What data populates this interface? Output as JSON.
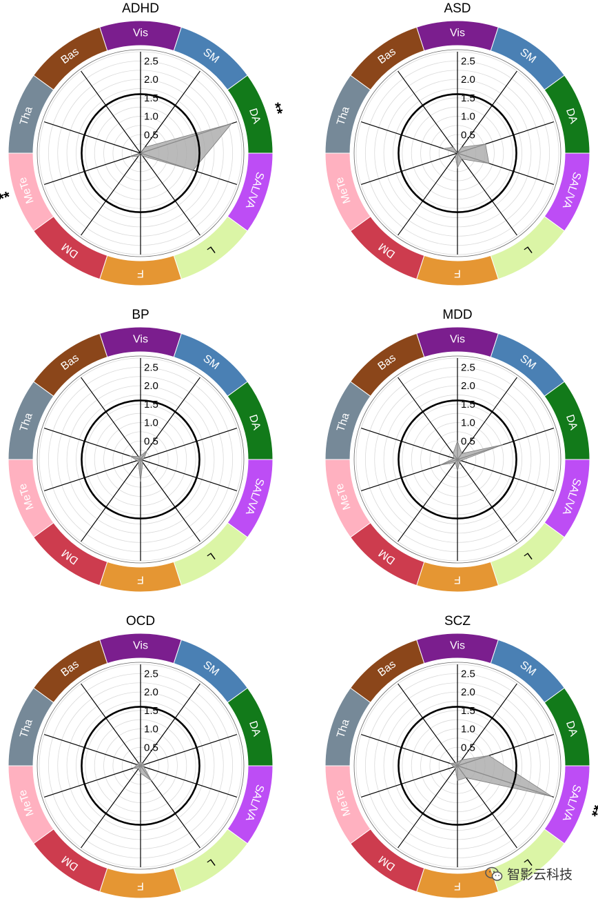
{
  "chart_data": [
    {
      "type": "radar",
      "title": "ADHD",
      "categories": [
        "Vis",
        "SM",
        "DA",
        "SAL/VA",
        "L",
        "F",
        "DM",
        "MeTe",
        "Tha",
        "Bas"
      ],
      "values": [
        0.0,
        0.2,
        2.6,
        1.5,
        0.1,
        0.0,
        0.1,
        0.3,
        0.0,
        0.0
      ],
      "significance": [
        "",
        "",
        "**",
        "",
        "",
        "",
        "",
        "**",
        "",
        ""
      ],
      "threshold": 1.6,
      "rlim": [
        0,
        2.75
      ],
      "rticks": [
        "0.5",
        "1.0",
        "1.5",
        "2.0",
        "2.5"
      ]
    },
    {
      "type": "radar",
      "title": "ASD",
      "categories": [
        "Vis",
        "SM",
        "DA",
        "SAL/VA",
        "L",
        "F",
        "DM",
        "MeTe",
        "Tha",
        "Bas"
      ],
      "values": [
        0.0,
        0.2,
        0.8,
        0.9,
        0.2,
        0.4,
        0.1,
        0.0,
        0.4,
        0.2
      ],
      "significance": [
        "",
        "",
        "",
        "",
        "",
        "",
        "",
        "",
        "",
        ""
      ],
      "threshold": 1.6,
      "rlim": [
        0,
        2.75
      ],
      "rticks": [
        "0.5",
        "1.0",
        "1.5",
        "2.0",
        "2.5"
      ]
    },
    {
      "type": "radar",
      "title": "BP",
      "categories": [
        "Vis",
        "SM",
        "DA",
        "SAL/VA",
        "L",
        "F",
        "DM",
        "MeTe",
        "Tha",
        "Bas"
      ],
      "values": [
        0.1,
        0.3,
        0.1,
        0.05,
        0.1,
        0.6,
        0.1,
        0.1,
        0.3,
        0.1
      ],
      "significance": [
        "",
        "",
        "",
        "",
        "",
        "",
        "",
        "",
        "",
        ""
      ],
      "threshold": 1.6,
      "rlim": [
        0,
        2.75
      ],
      "rticks": [
        "0.5",
        "1.0",
        "1.5",
        "2.0",
        "2.5"
      ]
    },
    {
      "type": "radar",
      "title": "MDD",
      "categories": [
        "Vis",
        "SM",
        "DA",
        "SAL/VA",
        "L",
        "F",
        "DM",
        "MeTe",
        "Tha",
        "Bas"
      ],
      "values": [
        0.5,
        0.2,
        1.3,
        0.1,
        0.1,
        0.3,
        0.1,
        0.5,
        0.1,
        0.2
      ],
      "significance": [
        "",
        "",
        "",
        "",
        "",
        "",
        "",
        "",
        "",
        ""
      ],
      "threshold": 1.6,
      "rlim": [
        0,
        2.75
      ],
      "rticks": [
        "0.5",
        "1.0",
        "1.5",
        "2.0",
        "2.5"
      ]
    },
    {
      "type": "radar",
      "title": "OCD",
      "categories": [
        "Vis",
        "SM",
        "DA",
        "SAL/VA",
        "L",
        "F",
        "DM",
        "MeTe",
        "Tha",
        "Bas"
      ],
      "values": [
        0.1,
        0.1,
        0.1,
        0.1,
        0.5,
        0.2,
        0.1,
        0.2,
        0.1,
        0.1
      ],
      "significance": [
        "",
        "",
        "",
        "",
        "",
        "",
        "",
        "",
        "",
        ""
      ],
      "threshold": 1.6,
      "rlim": [
        0,
        2.75
      ],
      "rticks": [
        "0.5",
        "1.0",
        "1.5",
        "2.0",
        "2.5"
      ]
    },
    {
      "type": "radar",
      "title": "SCZ",
      "categories": [
        "Vis",
        "SM",
        "DA",
        "SAL/VA",
        "L",
        "F",
        "DM",
        "MeTe",
        "Tha",
        "Bas"
      ],
      "values": [
        0.1,
        0.2,
        0.9,
        2.7,
        0.4,
        0.4,
        0.1,
        0.1,
        0.2,
        0.1
      ],
      "significance": [
        "",
        "",
        "",
        "**",
        "",
        "",
        "",
        "",
        "",
        ""
      ],
      "threshold": 1.6,
      "rlim": [
        0,
        2.75
      ],
      "rticks": [
        "0.5",
        "1.0",
        "1.5",
        "2.0",
        "2.5"
      ]
    }
  ],
  "networks": [
    {
      "name": "Vis",
      "color": "#7b1e8e"
    },
    {
      "name": "SM",
      "color": "#4a80b4"
    },
    {
      "name": "DA",
      "color": "#127a1a"
    },
    {
      "name": "SAL/VA",
      "color": "#bd4df5"
    },
    {
      "name": "L",
      "color": "#dbf5a6"
    },
    {
      "name": "F",
      "color": "#e59633"
    },
    {
      "name": "DM",
      "color": "#cd3c4e"
    },
    {
      "name": "MeTe",
      "color": "#ffb1c0"
    },
    {
      "name": "Tha",
      "color": "#768998"
    },
    {
      "name": "Bas",
      "color": "#8b461a"
    }
  ],
  "watermark": {
    "text": "智影云科技",
    "icon": "wechat-icon"
  }
}
